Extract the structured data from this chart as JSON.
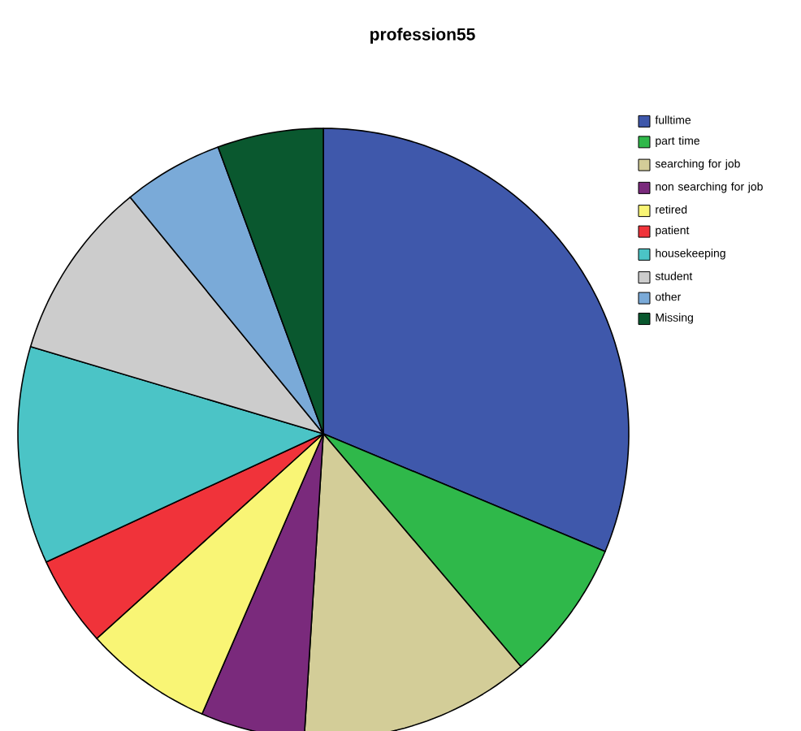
{
  "chart_data": {
    "type": "pie",
    "title": "profession55",
    "categories": [
      "fulltime",
      "part time",
      "searching for job",
      "non searching for job",
      "retired",
      "patient",
      "housekeeping",
      "student",
      "other",
      "Missing"
    ],
    "values": [
      31.3,
      7.5,
      12.2,
      5.5,
      6.8,
      4.8,
      11.5,
      9.5,
      5.3,
      5.6
    ],
    "colors": [
      "#3f58ab",
      "#2fb84a",
      "#d3cd98",
      "#7a2a7c",
      "#f9f575",
      "#f0333a",
      "#4bc4c6",
      "#cccccc",
      "#7aaad8",
      "#0a582f"
    ],
    "legend": "right"
  }
}
